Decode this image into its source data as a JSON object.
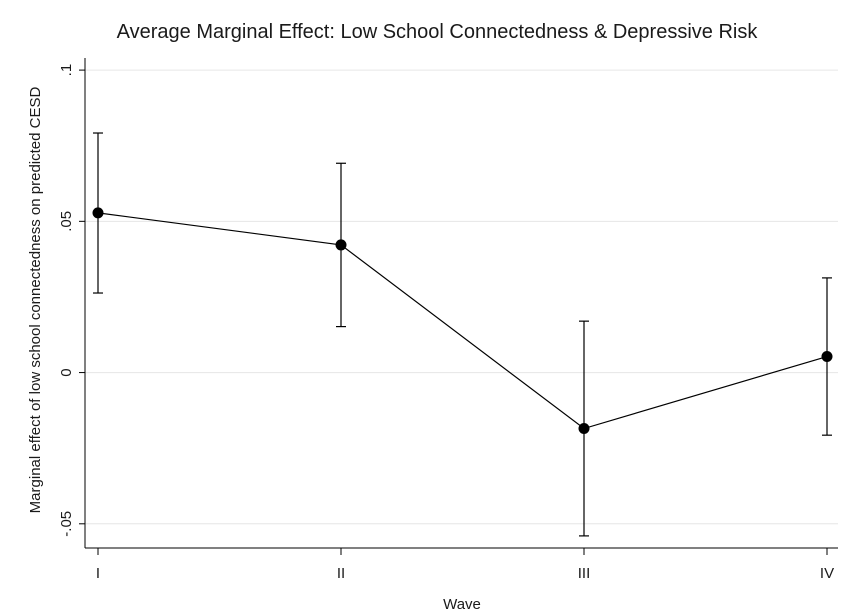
{
  "chart_data": {
    "type": "line",
    "title": "Average Marginal Effect: Low School Connectedness & Depressive Risk",
    "xlabel": "Wave",
    "ylabel": "Marginal effect of low school connectedness on predicted CESD",
    "categories": [
      "I",
      "II",
      "III",
      "IV"
    ],
    "series": [
      {
        "values": [
          0.0528,
          0.0422,
          -0.0185,
          0.0053
        ],
        "ci_lower": [
          0.0263,
          0.0152,
          -0.054,
          -0.0207
        ],
        "ci_upper": [
          0.0792,
          0.0692,
          0.017,
          0.0313
        ]
      }
    ],
    "yticks": [
      -0.05,
      0,
      0.05,
      0.1
    ],
    "ytick_labels": [
      "-.05",
      "0",
      ".05",
      ".1"
    ],
    "ylim": [
      -0.058,
      0.104
    ],
    "grid": true,
    "legend": "none",
    "colors": {
      "line": "#000000",
      "marker": "#000000",
      "grid": "#e6e6e6"
    }
  }
}
